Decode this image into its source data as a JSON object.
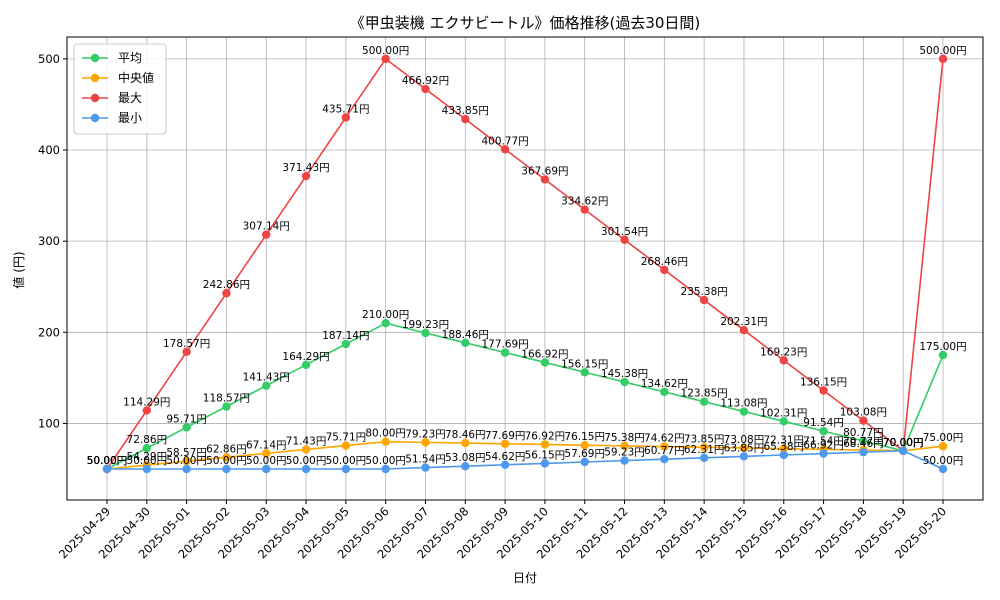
{
  "chart_data": {
    "type": "line",
    "title": "《甲虫装機 エクサビートル》価格推移(過去30日間)",
    "xlabel": "日付",
    "ylabel": "値 (円)",
    "x": [
      "2025-04-29",
      "2025-04-30",
      "2025-05-01",
      "2025-05-02",
      "2025-05-03",
      "2025-05-04",
      "2025-05-05",
      "2025-05-06",
      "2025-05-07",
      "2025-05-08",
      "2025-05-09",
      "2025-05-10",
      "2025-05-11",
      "2025-05-12",
      "2025-05-13",
      "2025-05-14",
      "2025-05-15",
      "2025-05-16",
      "2025-05-17",
      "2025-05-18",
      "2025-05-19",
      "2025-05-20"
    ],
    "ylim": [
      16,
      524
    ],
    "yticks": [
      100,
      200,
      300,
      400,
      500
    ],
    "grid": true,
    "legend_position": "top-left",
    "value_suffix": "円",
    "series": [
      {
        "name": "平均",
        "color": "#33cc66",
        "values": [
          50.0,
          72.86,
          95.71,
          118.57,
          141.43,
          164.29,
          187.14,
          210.0,
          199.23,
          188.46,
          177.69,
          166.92,
          156.15,
          145.38,
          134.62,
          123.85,
          113.08,
          102.31,
          91.54,
          80.77,
          70.0,
          175.0
        ]
      },
      {
        "name": "中央値",
        "color": "#ffa500",
        "values": [
          50.0,
          54.29,
          58.57,
          62.86,
          67.14,
          71.43,
          75.71,
          80.0,
          79.23,
          78.46,
          77.69,
          76.92,
          76.15,
          75.38,
          74.62,
          73.85,
          73.08,
          72.31,
          71.54,
          70.77,
          70.0,
          75.0
        ]
      },
      {
        "name": "最大",
        "color": "#ee4444",
        "values": [
          50.0,
          114.29,
          178.57,
          242.86,
          307.14,
          371.43,
          435.71,
          500.0,
          466.92,
          433.85,
          400.77,
          367.69,
          334.62,
          301.54,
          268.46,
          235.38,
          202.31,
          169.23,
          136.15,
          103.08,
          70.0,
          500.0
        ]
      },
      {
        "name": "最小",
        "color": "#4d99ee",
        "values": [
          50.0,
          50.0,
          50.0,
          50.0,
          50.0,
          50.0,
          50.0,
          50.0,
          51.54,
          53.08,
          54.62,
          56.15,
          57.69,
          59.23,
          60.77,
          62.31,
          63.85,
          65.38,
          66.92,
          68.46,
          70.0,
          50.0
        ]
      }
    ]
  }
}
